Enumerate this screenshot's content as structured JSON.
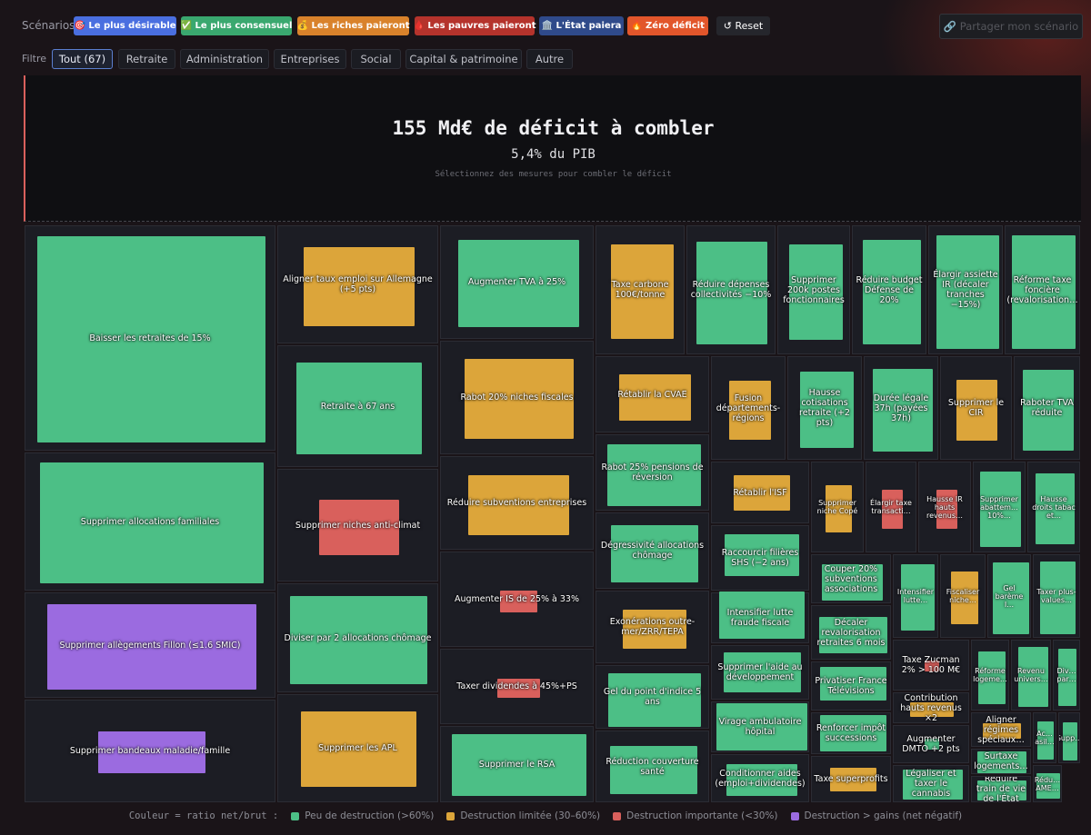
{
  "scenarios": {
    "label": "Scénarios",
    "buttons": [
      {
        "label": "🎯 Le plus désirable",
        "color": "#4a6fe0"
      },
      {
        "label": "✅ Le plus consensuel",
        "color": "#3aa86f"
      },
      {
        "label": "💰 Les riches paieront",
        "color": "#d9822b"
      },
      {
        "label": "🩸 Les pauvres paieront",
        "color": "#b5332c"
      },
      {
        "label": "🏛️ L'État paiera",
        "color": "#2f4a8a"
      },
      {
        "label": "🔥 Zéro déficit",
        "color": "#e2562b"
      }
    ],
    "reset": "↺ Reset",
    "share": "🔗 Partager mon scénario"
  },
  "filters": {
    "label": "Filtre",
    "items": [
      "Tout (67)",
      "Retraite",
      "Administration",
      "Entreprises",
      "Social",
      "Capital & patrimoine",
      "Autre"
    ]
  },
  "hero": {
    "title": "155 Md€ de déficit à combler",
    "subtitle": "5,4% du PIB",
    "hint": "Sélectionnez des mesures pour combler le déficit"
  },
  "cells": [
    {
      "label": "Baisser les retraites de 15%",
      "color": "#4cbf86"
    },
    {
      "label": "Supprimer allocations familiales",
      "color": "#4cbf86"
    },
    {
      "label": "Supprimer allègements Fillon (≤1.6 SMIC)",
      "color": "#9b6be0"
    },
    {
      "label": "Supprimer bandeaux maladie/famille",
      "color": "#9b6be0"
    },
    {
      "label": "Aligner taux emploi sur Allemagne (+5 pts)",
      "color": "#dca53a"
    },
    {
      "label": "Retraite à 67 ans",
      "color": "#4cbf86"
    },
    {
      "label": "Supprimer niches anti-climat",
      "color": "#d9605c"
    },
    {
      "label": "Diviser par 2 allocations chômage",
      "color": "#4cbf86"
    },
    {
      "label": "Supprimer les APL",
      "color": "#dca53a"
    },
    {
      "label": "Augmenter TVA à 25%",
      "color": "#4cbf86"
    },
    {
      "label": "Rabot 20% niches fiscales",
      "color": "#dca53a"
    },
    {
      "label": "Réduire subventions entreprises",
      "color": "#dca53a"
    },
    {
      "label": "Augmenter IS de 25% à 33%",
      "color": "#d9605c"
    },
    {
      "label": "Taxer dividendes à 45%+PS",
      "color": "#d9605c"
    },
    {
      "label": "Supprimer le RSA",
      "color": "#4cbf86"
    },
    {
      "label": "Taxe carbone 100€/tonne",
      "color": "#dca53a"
    },
    {
      "label": "Réduire dépenses collectivités −10%",
      "color": "#4cbf86"
    },
    {
      "label": "Supprimer 200k postes fonctionnaires",
      "color": "#4cbf86"
    },
    {
      "label": "Réduire budget Défense de 20%",
      "color": "#4cbf86"
    },
    {
      "label": "Élargir assiette IR (décaler tranches −15%)",
      "color": "#4cbf86"
    },
    {
      "label": "Réforme taxe foncière (revalorisation…",
      "color": "#4cbf86"
    },
    {
      "label": "Rétablir la CVAE",
      "color": "#dca53a"
    },
    {
      "label": "Rabot 25% pensions de réversion",
      "color": "#4cbf86"
    },
    {
      "label": "Dégressivité allocations chômage",
      "color": "#4cbf86"
    },
    {
      "label": "Exonérations outre-mer/ZRR/TEPA",
      "color": "#dca53a"
    },
    {
      "label": "Gel du point d'indice 5 ans",
      "color": "#4cbf86"
    },
    {
      "label": "Réduction couverture santé",
      "color": "#4cbf86"
    },
    {
      "label": "Fusion départements-régions",
      "color": "#dca53a"
    },
    {
      "label": "Hausse cotisations retraite (+2 pts)",
      "color": "#4cbf86"
    },
    {
      "label": "Durée légale 37h (payées 37h)",
      "color": "#4cbf86"
    },
    {
      "label": "Supprimer le CIR",
      "color": "#dca53a"
    },
    {
      "label": "Raboter TVA réduite",
      "color": "#4cbf86"
    },
    {
      "label": "Rétablir l'ISF",
      "color": "#dca53a"
    },
    {
      "label": "Raccourcir filières SHS (−2 ans)",
      "color": "#4cbf86"
    },
    {
      "label": "Intensifier lutte fraude fiscale",
      "color": "#4cbf86"
    },
    {
      "label": "Supprimer l'aide au développement",
      "color": "#4cbf86"
    },
    {
      "label": "Virage ambulatoire hôpital",
      "color": "#4cbf86"
    },
    {
      "label": "Conditionner aides (emploi+dividendes)",
      "color": "#4cbf86"
    },
    {
      "label": "Supprimer niche Copé",
      "color": "#dca53a"
    },
    {
      "label": "Élargir taxe transacti…",
      "color": "#d9605c"
    },
    {
      "label": "Hausse IR hauts revenus…",
      "color": "#d9605c"
    },
    {
      "label": "Supprimer abattem… 10%…",
      "color": "#4cbf86"
    },
    {
      "label": "Hausse droits tabac et…",
      "color": "#4cbf86"
    },
    {
      "label": "Couper 20% subventions associations",
      "color": "#4cbf86"
    },
    {
      "label": "Décaler revalorisation retraites 6 mois",
      "color": "#4cbf86"
    },
    {
      "label": "Privatiser France Télévisions",
      "color": "#4cbf86"
    },
    {
      "label": "Renforcer impôt successions",
      "color": "#4cbf86"
    },
    {
      "label": "Taxe superprofits",
      "color": "#dca53a"
    },
    {
      "label": "Intensifier lutte…",
      "color": "#4cbf86"
    },
    {
      "label": "Fiscaliser niche…",
      "color": "#dca53a"
    },
    {
      "label": "Gel barème I…",
      "color": "#4cbf86"
    },
    {
      "label": "Taxer plus-values…",
      "color": "#4cbf86"
    },
    {
      "label": "Taxe Zucman 2% > 100 M€",
      "color": "#d9605c"
    },
    {
      "label": "Contribution hauts revenus ×2",
      "color": "#dca53a"
    },
    {
      "label": "Augmenter DMTO +2 pts",
      "color": "#4cbf86"
    },
    {
      "label": "Légaliser et taxer le cannabis",
      "color": "#4cbf86"
    },
    {
      "label": "Réforme logeme…",
      "color": "#4cbf86"
    },
    {
      "label": "Revenu univers…",
      "color": "#4cbf86"
    },
    {
      "label": "Div… par…",
      "color": "#4cbf86"
    },
    {
      "label": "Aligner régimes spéciaux…",
      "color": "#dca53a"
    },
    {
      "label": "Ac… asil…",
      "color": "#4cbf86"
    },
    {
      "label": "Supp…",
      "color": "#4cbf86"
    },
    {
      "label": "Surtaxe logements…",
      "color": "#4cbf86"
    },
    {
      "label": "Réduire train de vie de l'État",
      "color": "#4cbf86"
    },
    {
      "label": "Rédu… AME…",
      "color": "#4cbf86"
    }
  ],
  "legend": {
    "title": "Couleur = ratio net/brut :",
    "items": [
      {
        "label": "Peu de destruction (>60%)",
        "color": "#4cbf86"
      },
      {
        "label": "Destruction limitée (30–60%)",
        "color": "#dca53a"
      },
      {
        "label": "Destruction importante (<30%)",
        "color": "#d9605c"
      },
      {
        "label": "Destruction > gains (net négatif)",
        "color": "#9b6be0"
      }
    ]
  }
}
